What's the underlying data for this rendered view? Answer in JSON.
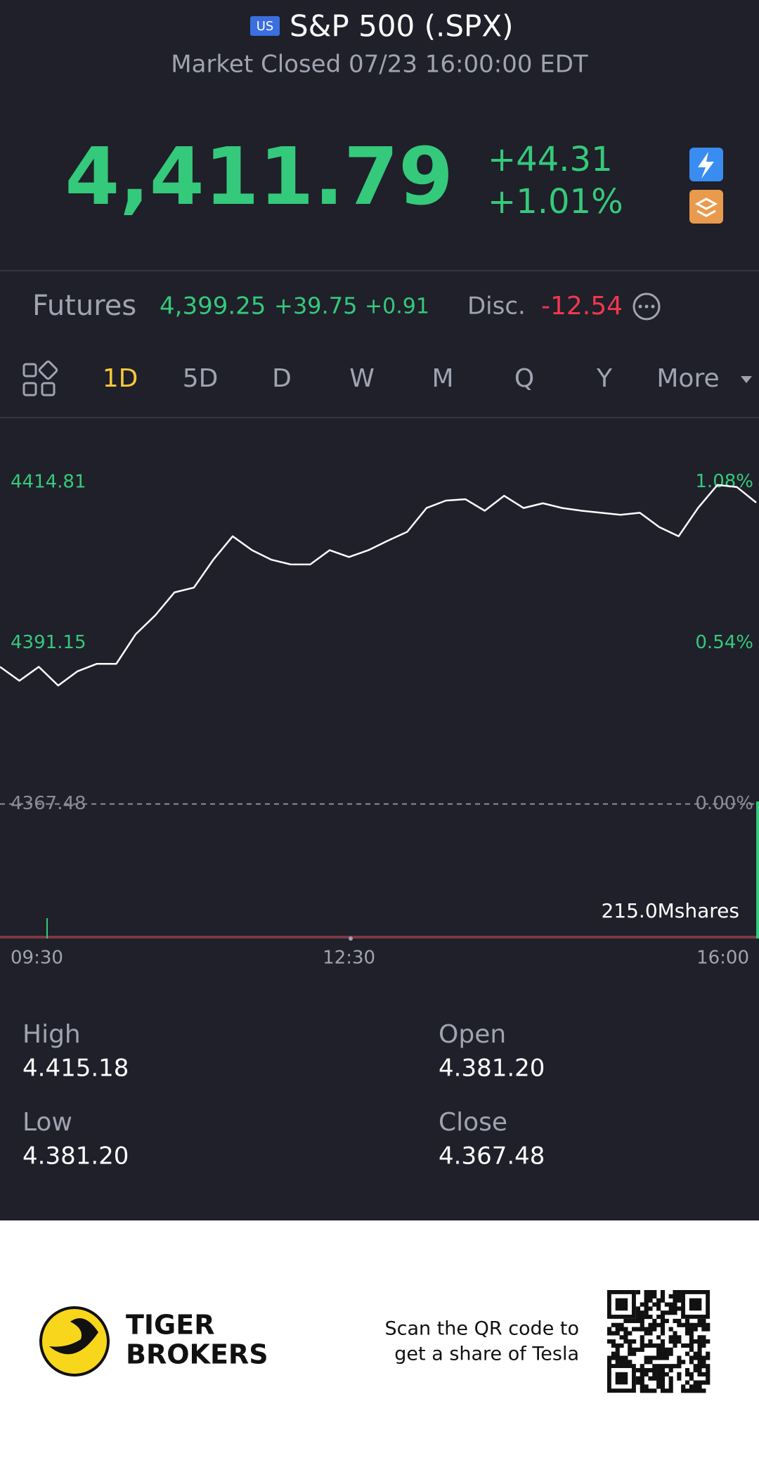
{
  "header": {
    "badge": "US",
    "title": "S&P 500 (.SPX)",
    "status": "Market Closed 07/23 16:00:00 EDT"
  },
  "quote": {
    "price": "4,411.79",
    "change": "+44.31",
    "change_pct": "+1.01%"
  },
  "futures": {
    "label": "Futures",
    "price": "4,399.25",
    "change": "+39.75",
    "change_pct": "+0.91",
    "disc_label": "Disc.",
    "disc": "-12.54"
  },
  "tabs": [
    "1D",
    "5D",
    "D",
    "W",
    "M",
    "Q",
    "Y",
    "More"
  ],
  "chart_data": {
    "type": "line",
    "color": "#ffffff",
    "x": [
      "09:30",
      "09:40",
      "09:50",
      "10:00",
      "10:10",
      "10:20",
      "10:30",
      "10:40",
      "10:50",
      "11:00",
      "11:10",
      "11:20",
      "11:30",
      "11:40",
      "11:50",
      "12:00",
      "12:10",
      "12:20",
      "12:30",
      "12:40",
      "12:50",
      "13:00",
      "13:10",
      "13:20",
      "13:30",
      "13:40",
      "13:50",
      "14:00",
      "14:10",
      "14:20",
      "14:30",
      "14:40",
      "14:50",
      "15:00",
      "15:10",
      "15:20",
      "15:30",
      "15:40",
      "15:50",
      "16:00"
    ],
    "values": [
      4387.65,
      4385.6,
      4387.65,
      4384.9,
      4387.0,
      4388.1,
      4388.1,
      4392.45,
      4395.2,
      4398.6,
      4399.3,
      4403.4,
      4406.85,
      4404.8,
      4403.4,
      4402.7,
      4402.7,
      4404.8,
      4403.8,
      4404.8,
      4406.2,
      4407.5,
      4411.0,
      4412.1,
      4412.3,
      4410.6,
      4412.8,
      4411.0,
      4411.7,
      4411.0,
      4410.6,
      4410.3,
      4410.0,
      4410.3,
      4408.2,
      4406.85,
      4411.0,
      4414.4,
      4414.1,
      4411.8
    ],
    "ylim": [
      4362.27,
      4418.51
    ],
    "yticks": [
      4367.48,
      4391.15,
      4414.81
    ],
    "y2lim": [
      -0.119,
      1.164
    ],
    "y2ticks": [
      {
        "value": 0,
        "label": "0.00%"
      },
      {
        "value": 0.54,
        "label": "0.54%"
      },
      {
        "value": 1.08,
        "label": "1.08%"
      }
    ],
    "volume_label": "215.0Mshares"
  },
  "stats": [
    {
      "label": "High",
      "value": "4.415.18"
    },
    {
      "label": "Open",
      "value": "4.381.20"
    },
    {
      "label": "Low",
      "value": "4.381.20"
    },
    {
      "label": "Close",
      "value": "4.367.48"
    }
  ],
  "footer": {
    "brand": [
      "TIGER",
      "BROKERS"
    ],
    "promo": [
      "Scan the QR code to",
      "get a share of Tesla"
    ]
  }
}
